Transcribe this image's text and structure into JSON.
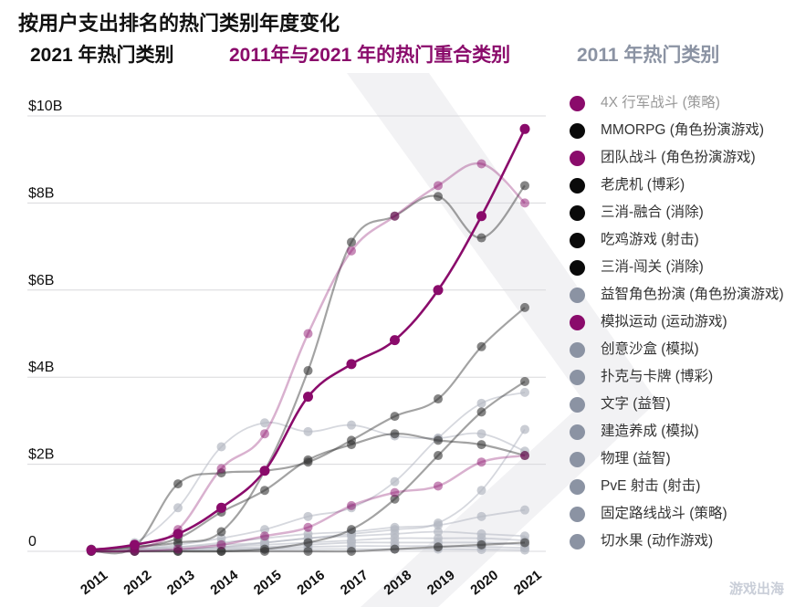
{
  "title": "按用户支出排名的热门类别年度变化",
  "subtitles": {
    "s2021": "2021 年热门类别",
    "overlap": "2011年与2021 年的热门重合类别",
    "s2011": "2011 年热门类别"
  },
  "watermark": "游戏出海",
  "colors": {
    "overlap": "#8a0b6b",
    "top2021": "#0a0a0a",
    "top2011": "#8b93a3"
  },
  "chart_data": {
    "type": "line",
    "x": [
      "2011",
      "2012",
      "2013",
      "2014",
      "2015",
      "2016",
      "2017",
      "2018",
      "2019",
      "2020",
      "2021"
    ],
    "ylim": [
      0,
      10
    ],
    "ytick_values": [
      0,
      2,
      4,
      6,
      8,
      10
    ],
    "ytick_labels": [
      "0",
      "$2B",
      "$4B",
      "$6B",
      "$8B",
      "$10B"
    ],
    "legend": "right",
    "series": [
      {
        "name": "4X 行军战斗 (策略)",
        "group": "overlap",
        "values": [
          0.02,
          0.05,
          0.5,
          1.9,
          2.7,
          5.0,
          6.9,
          7.7,
          8.4,
          8.9,
          8.0
        ]
      },
      {
        "name": "MMORPG (角色扮演游戏)",
        "group": "top2021",
        "values": [
          0.01,
          0.1,
          1.55,
          1.8,
          1.85,
          2.05,
          2.55,
          3.1,
          3.5,
          4.7,
          5.6
        ]
      },
      {
        "name": "团队战斗 (角色扮演游戏)",
        "group": "overlap",
        "values": [
          0.0,
          0.0,
          0.05,
          0.15,
          0.35,
          0.55,
          1.05,
          1.35,
          1.5,
          2.05,
          2.2
        ]
      },
      {
        "name": "老虎机 (博彩)",
        "group": "top2021",
        "values": [
          0.05,
          0.1,
          0.3,
          0.9,
          1.4,
          2.1,
          2.45,
          2.7,
          2.55,
          2.45,
          2.2
        ]
      },
      {
        "name": "三消-融合 (消除)",
        "group": "top2021",
        "values": [
          0.0,
          0.0,
          0.0,
          0.0,
          0.05,
          0.2,
          0.5,
          1.2,
          2.2,
          3.2,
          3.9
        ]
      },
      {
        "name": "吃鸡游戏 (射击)",
        "group": "top2021",
        "values": [
          0.0,
          0.0,
          0.0,
          0.0,
          0.0,
          0.0,
          0.0,
          0.05,
          0.1,
          0.15,
          0.2
        ]
      },
      {
        "name": "三消-闯关 (消除)",
        "group": "top2021",
        "values": [
          0.02,
          0.1,
          0.2,
          0.45,
          1.85,
          4.15,
          7.1,
          7.7,
          8.15,
          7.2,
          8.4
        ]
      },
      {
        "name": "益智角色扮演 (角色扮演游戏)",
        "group": "top2011",
        "values": [
          0.02,
          0.05,
          0.15,
          0.3,
          0.5,
          0.8,
          1.0,
          1.6,
          2.6,
          3.4,
          3.65
        ]
      },
      {
        "name": "模拟运动 (运动游戏)",
        "group": "overlap",
        "values": [
          0.03,
          0.15,
          0.4,
          1.0,
          1.85,
          3.55,
          4.3,
          4.85,
          6.0,
          7.7,
          9.7
        ]
      },
      {
        "name": "创意沙盒 (模拟)",
        "group": "top2011",
        "values": [
          0.0,
          0.0,
          0.05,
          0.1,
          0.2,
          0.3,
          0.4,
          0.5,
          0.65,
          1.4,
          2.8
        ]
      },
      {
        "name": "扑克与卡牌 (博彩)",
        "group": "top2011",
        "values": [
          0.05,
          0.2,
          1.0,
          2.4,
          2.95,
          2.75,
          2.9,
          2.65,
          2.6,
          2.7,
          2.3
        ]
      },
      {
        "name": "文字 (益智)",
        "group": "top2011",
        "values": [
          0.0,
          0.05,
          0.1,
          0.2,
          0.3,
          0.4,
          0.45,
          0.55,
          0.6,
          0.8,
          0.95
        ]
      },
      {
        "name": "建造养成 (模拟)",
        "group": "top2011",
        "values": [
          0.0,
          0.05,
          0.1,
          0.15,
          0.2,
          0.3,
          0.35,
          0.4,
          0.45,
          0.4,
          0.35
        ]
      },
      {
        "name": "物理 (益智)",
        "group": "top2011",
        "values": [
          0.0,
          0.02,
          0.05,
          0.1,
          0.15,
          0.2,
          0.25,
          0.3,
          0.3,
          0.3,
          0.25
        ]
      },
      {
        "name": "PvE 射击 (射击)",
        "group": "top2011",
        "values": [
          0.0,
          0.02,
          0.05,
          0.08,
          0.1,
          0.15,
          0.2,
          0.2,
          0.2,
          0.2,
          0.15
        ]
      },
      {
        "name": "固定路线战斗 (策略)",
        "group": "top2011",
        "values": [
          0.0,
          0.01,
          0.03,
          0.05,
          0.07,
          0.1,
          0.12,
          0.12,
          0.12,
          0.1,
          0.08
        ]
      },
      {
        "name": "切水果 (动作游戏)",
        "group": "top2011",
        "values": [
          0.0,
          0.01,
          0.02,
          0.03,
          0.04,
          0.05,
          0.05,
          0.05,
          0.05,
          0.04,
          0.03
        ]
      }
    ]
  }
}
